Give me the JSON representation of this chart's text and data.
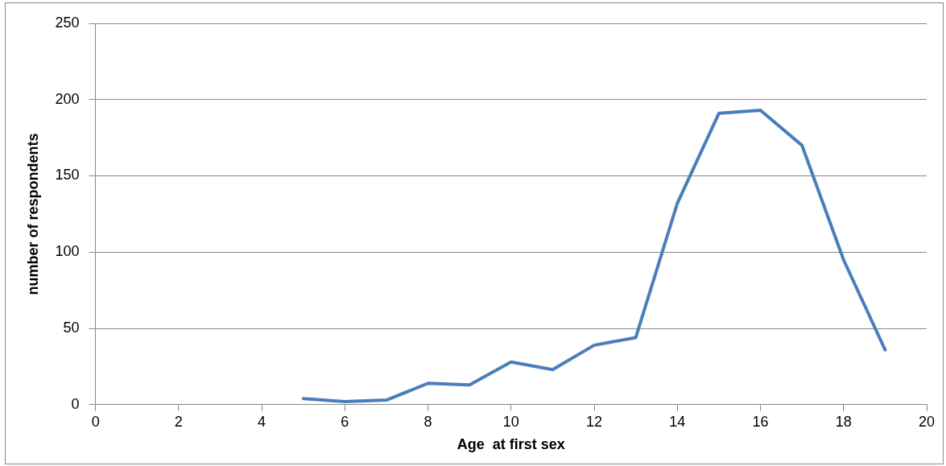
{
  "chart_data": {
    "type": "line",
    "xlabel": "Age  at first sex",
    "ylabel": "number of respondents",
    "x": [
      5,
      6,
      7,
      8,
      9,
      10,
      11,
      12,
      13,
      14,
      15,
      16,
      17,
      18,
      19
    ],
    "series": [
      {
        "color": "#4a7ebb",
        "values": [
          4,
          2,
          3,
          14,
          13,
          28,
          23,
          39,
          44,
          132,
          191,
          193,
          170,
          95,
          36
        ]
      }
    ],
    "xlim": [
      0,
      20
    ],
    "xticks": [
      0,
      2,
      4,
      6,
      8,
      10,
      12,
      14,
      16,
      18,
      20
    ],
    "ylim": [
      0,
      250
    ],
    "yticks": [
      0,
      50,
      100,
      150,
      200,
      250
    ],
    "grid": "y",
    "legend": false,
    "marker": "none",
    "line_style": "solid"
  }
}
